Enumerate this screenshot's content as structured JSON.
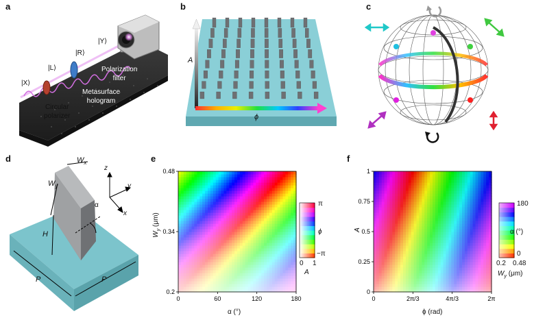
{
  "panel_labels": {
    "a": "a",
    "b": "b",
    "c": "c",
    "d": "d",
    "e": "e",
    "f": "f"
  },
  "panel_a": {
    "state_x": "|X⟩",
    "state_l": "|L⟩",
    "state_r": "|R⟩",
    "state_y": "|Y⟩",
    "circular_polarizer_line1": "Circular",
    "circular_polarizer_line2": "polarizer",
    "metasurface_line1": "Metasurface",
    "metasurface_line2": "hologram",
    "filter_line1": "Polarization",
    "filter_line2": "filter"
  },
  "panel_b": {
    "amplitude_label": "A",
    "phase_label": "ϕ"
  },
  "panel_d": {
    "wx": "W",
    "wx_sub": "x",
    "wy": "W",
    "wy_sub": "y",
    "h": "H",
    "p1": "P",
    "p2": "P",
    "alpha": "α",
    "axis_x": "x",
    "axis_y": "y",
    "axis_z": "z"
  },
  "colors": {
    "substrate": "#7cc4cc",
    "pillar": "#6e7073",
    "sphere_arrow": "#3a3a3a"
  },
  "chart_data": [
    {
      "type": "heatmap",
      "panel": "e",
      "xlabel": "α (°)",
      "ylabel": "W",
      "ylabel_sub": "y",
      "ylabel_unit": "(μm)",
      "xlim": [
        0,
        180
      ],
      "ylim": [
        0.2,
        0.48
      ],
      "xticks": [
        "0",
        "60",
        "120",
        "180"
      ],
      "yticks": [
        "0.2",
        "0.34",
        "0.48"
      ],
      "colorbar": {
        "phase_label": "ϕ",
        "phase_top": "π",
        "phase_bottom": "−π",
        "amp_label": "A",
        "amp_left": "0",
        "amp_right": "1"
      },
      "description_values": {
        "phase_range": [
          -3.14159,
          3.14159
        ],
        "amplitude_range": [
          0,
          1
        ]
      }
    },
    {
      "type": "heatmap",
      "panel": "f",
      "xlabel": "ϕ (rad)",
      "ylabel": "A",
      "xlim": [
        0,
        6.2832
      ],
      "ylim": [
        0,
        1
      ],
      "xticks": [
        "0",
        "2π/3",
        "4π/3",
        "2π"
      ],
      "yticks": [
        "0",
        "0.25",
        "0.5",
        "0.75",
        "1"
      ],
      "colorbar": {
        "alpha_label": "α (°)",
        "alpha_top": "180",
        "alpha_bottom": "0",
        "w_label": "W",
        "w_sub": "y",
        "w_unit": "(μm)",
        "w_left": "0.2",
        "w_right": "0.48"
      },
      "description_values": {
        "alpha_range": [
          0,
          180
        ],
        "wy_range": [
          0.2,
          0.48
        ]
      }
    }
  ]
}
